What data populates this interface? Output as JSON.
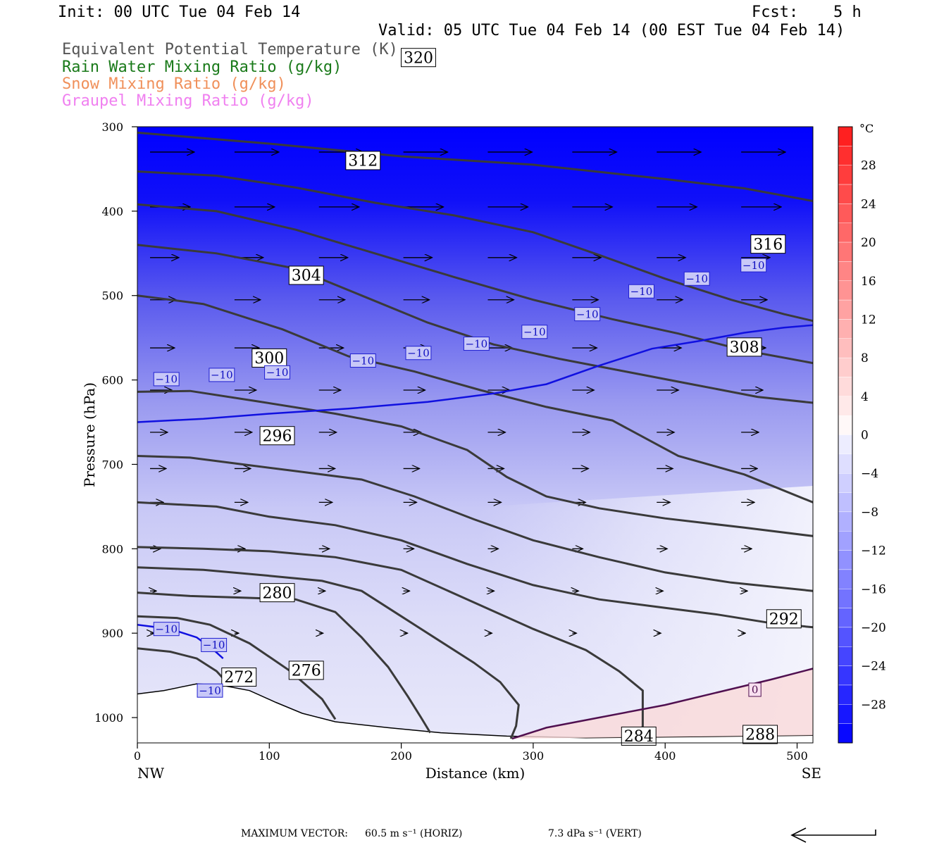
{
  "header": {
    "init": "Init: 00 UTC Tue 04 Feb 14",
    "fcst_label": "Fcst:",
    "fcst_value": "5 h",
    "valid": "Valid: 05 UTC Tue 04 Feb 14 (00 EST Tue 04 Feb 14)"
  },
  "legend": [
    {
      "label": "Equivalent Potential Temperature (K)",
      "color": "#555555"
    },
    {
      "label": "Rain Water Mixing Ratio (g/kg)",
      "color": "#1a7a1a"
    },
    {
      "label": "Snow Mixing Ratio (g/kg)",
      "color": "#f0905a"
    },
    {
      "label": "Graupel Mixing Ratio (g/kg)",
      "color": "#f080f0"
    }
  ],
  "footer": {
    "max_vector_label": "MAXIMUM VECTOR:",
    "horiz": "60.5 m s⁻¹ (HORIZ)",
    "vert": "7.3 dPa s⁻¹ (VERT)"
  },
  "chart_data": {
    "type": "cross-section contour",
    "xlabel": "Distance (km)",
    "ylabel": "Pressure (hPa)",
    "x_ticks": [
      0,
      100,
      200,
      300,
      400,
      500
    ],
    "y_ticks": [
      300,
      400,
      500,
      600,
      700,
      800,
      900,
      1000
    ],
    "xlim": [
      0,
      512
    ],
    "ylim": [
      1030,
      300
    ],
    "left_end": "NW",
    "right_end": "SE",
    "colorbar": {
      "unit": "°C",
      "ticks": [
        28,
        24,
        20,
        16,
        12,
        8,
        4,
        0,
        -4,
        -8,
        -12,
        -16,
        -20,
        -24,
        -28
      ],
      "range": [
        -32,
        32
      ]
    },
    "theta_e_contours": [
      {
        "label": "272",
        "points": [
          [
            0,
            918
          ],
          [
            25,
            922
          ],
          [
            45,
            930
          ],
          [
            60,
            945
          ],
          [
            70,
            962
          ]
        ],
        "label_at": [
          77,
          952
        ]
      },
      {
        "label": "276",
        "points": [
          [
            0,
            880
          ],
          [
            30,
            882
          ],
          [
            55,
            890
          ],
          [
            85,
            912
          ],
          [
            115,
            944
          ],
          [
            140,
            978
          ],
          [
            150,
            1002
          ]
        ],
        "label_at": [
          128,
          944
        ]
      },
      {
        "label": "280",
        "points": [
          [
            0,
            852
          ],
          [
            40,
            856
          ],
          [
            80,
            858
          ],
          [
            120,
            860
          ],
          [
            150,
            875
          ],
          [
            170,
            905
          ],
          [
            190,
            940
          ],
          [
            205,
            975
          ],
          [
            215,
            1000
          ],
          [
            222,
            1018
          ]
        ],
        "label_at": [
          106,
          852
        ]
      },
      {
        "label": "284",
        "points": [
          [
            0,
            822
          ],
          [
            50,
            825
          ],
          [
            100,
            832
          ],
          [
            140,
            838
          ],
          [
            170,
            850
          ],
          [
            200,
            880
          ],
          [
            230,
            910
          ],
          [
            255,
            935
          ],
          [
            275,
            958
          ],
          [
            289,
            985
          ],
          [
            287,
            1010
          ],
          [
            283,
            1025
          ]
        ],
        "label_at": [
          380,
          1022
        ]
      },
      {
        "label": "288",
        "points": [
          [
            0,
            798
          ],
          [
            50,
            800
          ],
          [
            100,
            803
          ],
          [
            150,
            810
          ],
          [
            200,
            825
          ],
          [
            250,
            860
          ],
          [
            300,
            895
          ],
          [
            340,
            920
          ],
          [
            365,
            945
          ],
          [
            383,
            968
          ],
          [
            383,
            1010
          ],
          [
            380,
            1026
          ]
        ],
        "label_at": [
          472,
          1020
        ]
      },
      {
        "label": "292",
        "points": [
          [
            0,
            745
          ],
          [
            60,
            750
          ],
          [
            100,
            762
          ],
          [
            150,
            772
          ],
          [
            200,
            790
          ],
          [
            250,
            818
          ],
          [
            300,
            843
          ],
          [
            350,
            860
          ],
          [
            400,
            870
          ],
          [
            440,
            878
          ],
          [
            480,
            888
          ],
          [
            512,
            893
          ]
        ],
        "label_at": [
          490,
          883
        ]
      },
      {
        "label": "296",
        "points": [
          [
            0,
            690
          ],
          [
            40,
            692
          ],
          [
            80,
            700
          ],
          [
            120,
            708
          ],
          [
            170,
            718
          ],
          [
            210,
            738
          ],
          [
            255,
            765
          ],
          [
            300,
            790
          ],
          [
            350,
            810
          ],
          [
            400,
            828
          ],
          [
            450,
            840
          ],
          [
            512,
            850
          ]
        ],
        "label_at": [
          106,
          666
        ]
      },
      {
        "label": "300",
        "points": [
          [
            0,
            614
          ],
          [
            40,
            613
          ],
          [
            90,
            625
          ],
          [
            150,
            640
          ],
          [
            200,
            655
          ],
          [
            250,
            683
          ],
          [
            280,
            715
          ],
          [
            310,
            738
          ],
          [
            350,
            752
          ],
          [
            400,
            764
          ],
          [
            460,
            775
          ],
          [
            512,
            785
          ]
        ],
        "label_at": [
          100,
          574
        ]
      },
      {
        "label": "304",
        "points": [
          [
            0,
            500
          ],
          [
            50,
            510
          ],
          [
            110,
            540
          ],
          [
            160,
            572
          ],
          [
            210,
            590
          ],
          [
            260,
            612
          ],
          [
            310,
            632
          ],
          [
            360,
            648
          ],
          [
            410,
            690
          ],
          [
            460,
            712
          ],
          [
            512,
            745
          ]
        ],
        "label_at": [
          128,
          476
        ]
      },
      {
        "label": "308",
        "points": [
          [
            0,
            440
          ],
          [
            60,
            450
          ],
          [
            120,
            468
          ],
          [
            170,
            500
          ],
          [
            220,
            532
          ],
          [
            270,
            558
          ],
          [
            320,
            575
          ],
          [
            370,
            590
          ],
          [
            420,
            605
          ],
          [
            470,
            620
          ],
          [
            512,
            627
          ]
        ],
        "label_at": [
          460,
          561
        ]
      },
      {
        "label": "312",
        "points": [
          [
            0,
            392
          ],
          [
            60,
            400
          ],
          [
            120,
            422
          ],
          [
            180,
            450
          ],
          [
            240,
            478
          ],
          [
            300,
            505
          ],
          [
            360,
            528
          ],
          [
            410,
            545
          ],
          [
            460,
            565
          ],
          [
            512,
            580
          ]
        ],
        "label_at": [
          171,
          340
        ]
      },
      {
        "label": "316",
        "points": [
          [
            0,
            353
          ],
          [
            60,
            358
          ],
          [
            120,
            372
          ],
          [
            180,
            390
          ],
          [
            240,
            405
          ],
          [
            300,
            425
          ],
          [
            350,
            452
          ],
          [
            400,
            480
          ],
          [
            450,
            505
          ],
          [
            490,
            522
          ],
          [
            512,
            530
          ]
        ],
        "label_at": [
          478,
          439
        ]
      },
      {
        "label": "320",
        "points": [
          [
            0,
            307
          ],
          [
            100,
            320
          ],
          [
            200,
            335
          ],
          [
            300,
            345
          ],
          [
            400,
            362
          ],
          [
            460,
            373
          ],
          [
            512,
            388
          ]
        ],
        "label_at": [
          213,
          218
        ]
      }
    ],
    "isotherm_minus10": {
      "label": "−10",
      "points": [
        [
          0,
          650
        ],
        [
          50,
          646
        ],
        [
          100,
          640
        ],
        [
          160,
          634
        ],
        [
          220,
          626
        ],
        [
          270,
          616
        ],
        [
          310,
          605
        ],
        [
          350,
          583
        ],
        [
          390,
          563
        ],
        [
          425,
          554
        ],
        [
          460,
          544
        ],
        [
          490,
          538
        ],
        [
          512,
          535
        ]
      ],
      "label_positions": [
        [
          22,
          599
        ],
        [
          64,
          594
        ],
        [
          106,
          591
        ],
        [
          171,
          577
        ],
        [
          213,
          568
        ],
        [
          257,
          557
        ],
        [
          301,
          543
        ],
        [
          341,
          522
        ],
        [
          382,
          495
        ],
        [
          424,
          480
        ],
        [
          467,
          464
        ]
      ]
    },
    "isotherm_minus10_low": {
      "label": "−10",
      "points": [
        [
          0,
          890
        ],
        [
          25,
          895
        ],
        [
          45,
          905
        ],
        [
          58,
          920
        ],
        [
          65,
          930
        ]
      ],
      "label_positions": [
        [
          22,
          895
        ],
        [
          58,
          914
        ],
        [
          55,
          968
        ]
      ]
    },
    "isotherm_zero": {
      "label": "0",
      "points": [
        [
          284,
          1025
        ],
        [
          310,
          1012
        ],
        [
          350,
          1000
        ],
        [
          400,
          985
        ],
        [
          440,
          970
        ],
        [
          480,
          955
        ],
        [
          512,
          942
        ]
      ],
      "label_positions": [
        [
          468,
          967
        ]
      ]
    },
    "ground_profile": [
      [
        0,
        972
      ],
      [
        20,
        968
      ],
      [
        45,
        960
      ],
      [
        65,
        962
      ],
      [
        85,
        968
      ],
      [
        105,
        982
      ],
      [
        125,
        995
      ],
      [
        150,
        1005
      ],
      [
        190,
        1012
      ],
      [
        230,
        1018
      ],
      [
        280,
        1022
      ],
      [
        340,
        1024
      ],
      [
        400,
        1023
      ],
      [
        460,
        1022
      ],
      [
        512,
        1021
      ]
    ],
    "wind_vectors": [
      {
        "row": 318,
        "y": 330,
        "xs": [
          0,
          64,
          128,
          192,
          256,
          320,
          384,
          448
        ],
        "len": 62
      },
      {
        "row": 390,
        "y": 395,
        "xs": [
          0,
          64,
          128,
          192,
          256,
          320,
          384,
          448
        ],
        "len": 56
      },
      {
        "row": 445,
        "y": 455,
        "xs": [
          0,
          64,
          128,
          192,
          256,
          320,
          384,
          448
        ],
        "len": 40
      },
      {
        "row": 500,
        "y": 505,
        "xs": [
          0,
          64,
          128,
          192,
          256,
          320,
          384,
          448
        ],
        "len": 36
      },
      {
        "row": 560,
        "y": 562,
        "xs": [
          0,
          64,
          128,
          192,
          256,
          320,
          384,
          448
        ],
        "len": 34
      },
      {
        "row": 610,
        "y": 612,
        "xs": [
          0,
          64,
          128,
          192,
          256,
          320,
          384,
          448
        ],
        "len": 30
      },
      {
        "row": 660,
        "y": 662,
        "xs": [
          0,
          64,
          128,
          192,
          256,
          320,
          384,
          448
        ],
        "len": 24
      },
      {
        "row": 700,
        "y": 705,
        "xs": [
          0,
          64,
          128,
          192,
          256,
          320,
          384,
          448
        ],
        "len": 22
      },
      {
        "row": 740,
        "y": 745,
        "xs": [
          0,
          64,
          128,
          192,
          256,
          320,
          384,
          448
        ],
        "len": 18
      },
      {
        "row": 800,
        "y": 800,
        "xs": [
          0,
          64,
          128,
          192,
          256,
          320,
          384,
          448
        ],
        "len": 14
      },
      {
        "row": 850,
        "y": 850,
        "xs": [
          0,
          64,
          128,
          192,
          256,
          320,
          384,
          448
        ],
        "len": 8
      },
      {
        "row": 900,
        "y": 900,
        "xs": [
          0,
          64,
          128,
          192,
          256,
          320,
          384,
          448
        ],
        "len": 5
      }
    ]
  }
}
